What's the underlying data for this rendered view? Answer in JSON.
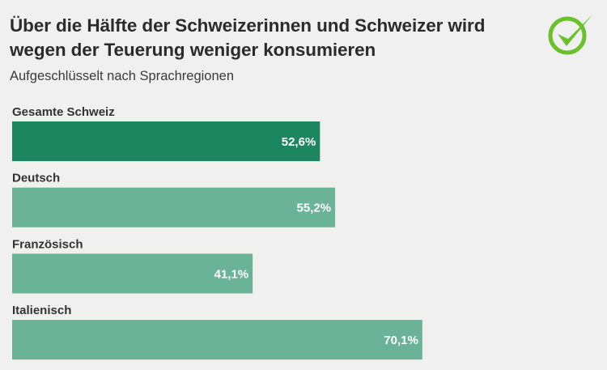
{
  "header": {
    "title": "Über die Hälfte der Schweizerinnen und Schweizer wird wegen der Teuerung weniger konsumieren",
    "subtitle": "Aufgeschlüsselt nach Sprachregionen",
    "logo_icon": "checkmark-circle-icon"
  },
  "colors": {
    "highlight_bar": "#1c8660",
    "bar": "#6bb398",
    "logo": "#6ac129",
    "background": "#f0f0f0"
  },
  "chart_data": {
    "type": "bar",
    "orientation": "horizontal",
    "title": "Über die Hälfte der Schweizerinnen und Schweizer wird wegen der Teuerung weniger konsumieren",
    "subtitle": "Aufgeschlüsselt nach Sprachregionen",
    "xlabel": "",
    "ylabel": "",
    "categories": [
      "Gesamte Schweiz",
      "Deutsch",
      "Französisch",
      "Italienisch"
    ],
    "values": [
      52.6,
      55.2,
      41.1,
      70.1
    ],
    "value_labels": [
      "52,6%",
      "55,2%",
      "41,1%",
      "70,1%"
    ],
    "highlighted": [
      true,
      false,
      false,
      false
    ],
    "unit": "%",
    "xlim": [
      0,
      100
    ],
    "grid": false,
    "legend": "none"
  }
}
